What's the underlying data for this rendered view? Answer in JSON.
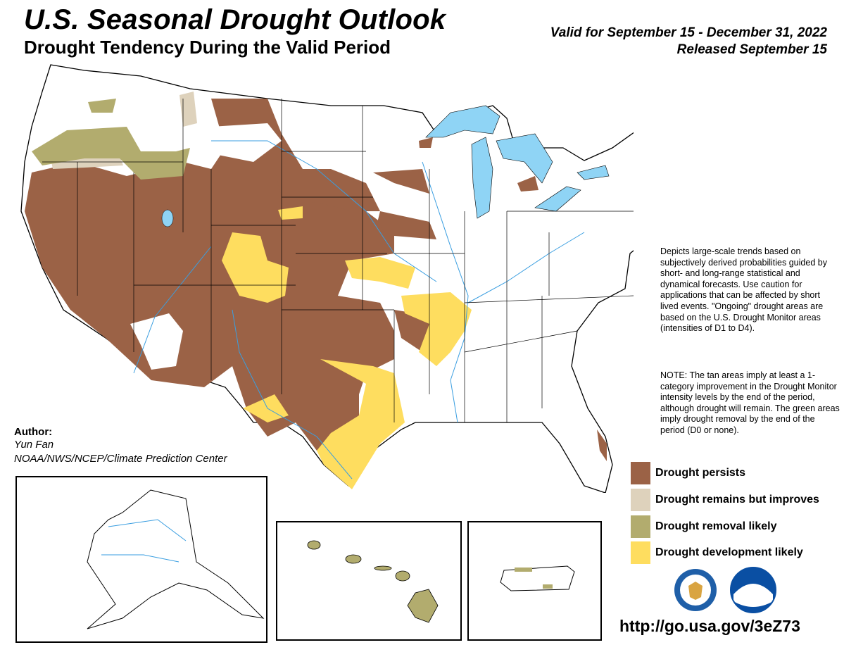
{
  "header": {
    "title": "U.S. Seasonal Drought Outlook",
    "subtitle": "Drought Tendency During the Valid Period",
    "valid": "Valid for September 15 - December 31, 2022",
    "released": "Released September 15"
  },
  "description": "Depicts large-scale trends based on subjectively derived probabilities guided by short- and long-range statistical and dynamical forecasts. Use caution for applications that can be affected by short lived events. \"Ongoing\" drought areas are based on the U.S. Drought Monitor areas (intensities of D1 to D4).",
  "note": "NOTE: The tan areas imply at least a 1-category improvement in the Drought Monitor intensity levels by the end of the period, although drought will remain. The green areas imply drought removal by the end of the period (D0 or none).",
  "legend": [
    {
      "label": "Drought persists",
      "color": "#9b6246"
    },
    {
      "label": "Drought remains but improves",
      "color": "#ded2bc"
    },
    {
      "label": "Drought removal likely",
      "color": "#b2ac6e"
    },
    {
      "label": "Drought development likely",
      "color": "#fedd5f"
    }
  ],
  "author": {
    "heading": "Author:",
    "name": "Yun Fan",
    "org": "NOAA/NWS/NCEP/Climate Prediction Center"
  },
  "url": "http://go.usa.gov/3eZ73",
  "colors": {
    "persist": "#9b6246",
    "improve": "#ded2bc",
    "removal": "#b2ac6e",
    "development": "#fedd5f",
    "water": "#8fd4f5",
    "river": "#3a9ee0"
  },
  "map": {
    "regions_depicted": [
      "Contiguous U.S.",
      "Alaska",
      "Hawaii",
      "Puerto Rico"
    ]
  },
  "logos": [
    "Department of Commerce seal",
    "NOAA logo"
  ]
}
